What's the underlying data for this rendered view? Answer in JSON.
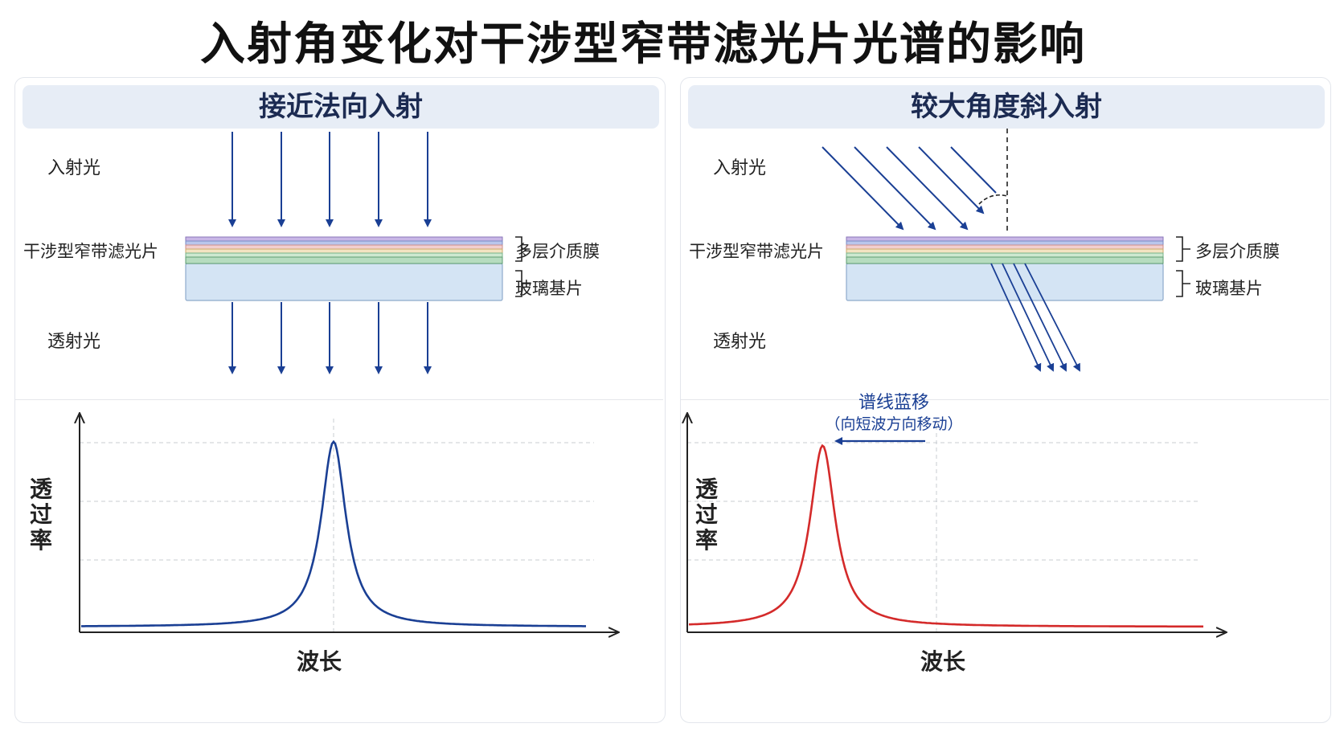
{
  "title": "入射角变化对干涉型窄带滤光片光谱的影响",
  "colors": {
    "accent_blue": "#1a3f94",
    "curve_red": "#d42a2a",
    "header_bg": "#e7edf6",
    "glass": "#d4e4f4"
  },
  "left_panel": {
    "header": "接近法向入射",
    "incident_label": "入射光",
    "filter_label": "干涉型窄带滤光片",
    "multilayer_label": "多层介质膜",
    "substrate_label": "玻璃基片",
    "transmitted_label": "透射光",
    "ylabel": "透过率",
    "xlabel": "波长"
  },
  "right_panel": {
    "header": "较大角度斜入射",
    "incident_label": "入射光",
    "filter_label": "干涉型窄带滤光片",
    "multilayer_label": "多层介质膜",
    "substrate_label": "玻璃基片",
    "transmitted_label": "透射光",
    "shift_title": "谱线蓝移",
    "shift_subtitle": "（向短波方向移动）",
    "ylabel": "透过率",
    "xlabel": "波长"
  },
  "chart_data": [
    {
      "type": "line",
      "title": "",
      "xlabel": "波长",
      "ylabel": "透过率",
      "ylim": [
        0,
        1
      ],
      "grid": "dashed horizontal",
      "series": [
        {
          "x": [
            0,
            1
          ],
          "peak_center": 0.5,
          "peak_value": 0.98,
          "baseline": 0.02,
          "fwhm": 0.06
        }
      ],
      "center_marker": 0.5
    },
    {
      "type": "line",
      "title": "",
      "xlabel": "波长",
      "ylabel": "透过率",
      "ylim": [
        0,
        1
      ],
      "grid": "dashed horizontal",
      "series": [
        {
          "x": [
            0,
            1
          ],
          "peak_center": 0.26,
          "peak_value": 0.96,
          "baseline": 0.02,
          "fwhm": 0.06
        }
      ],
      "center_marker": 0.5,
      "shift_direction": "toward shorter wavelength"
    }
  ]
}
